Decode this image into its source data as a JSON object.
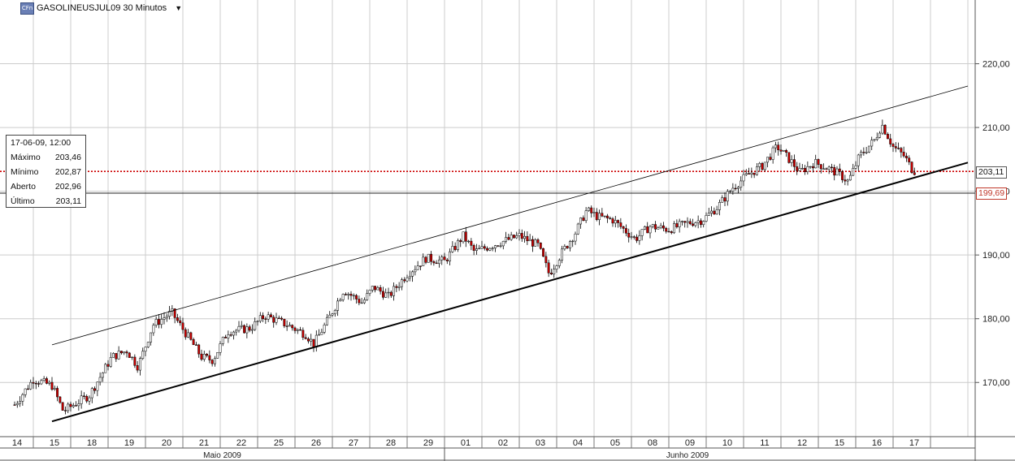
{
  "header": {
    "icon_text": "CFn",
    "title": "GASOLINEUSJUL09 30 Minutos",
    "dropdown_glyph": "▼"
  },
  "info": {
    "datetime": "17-06-09, 12:00",
    "max_label": "Máximo",
    "max_value": "203,46",
    "min_label": "Mínimo",
    "min_value": "202,87",
    "open_label": "Aberto",
    "open_value": "202,96",
    "last_label": "Último",
    "last_value": "203,11"
  },
  "tags": {
    "current": "203,11",
    "reference": "199,69"
  },
  "colors": {
    "up": "#000000",
    "down": "#cc0000",
    "current_line": "#cc0000",
    "grid": "#cccccc"
  },
  "chart_data": {
    "type": "candlestick",
    "interval": "30 Minutos",
    "ylim": [
      161.5,
      230
    ],
    "y_ticks": [
      170,
      180,
      190,
      200,
      210,
      220
    ],
    "y_tick_labels": [
      "170,00",
      "180,00",
      "190,00",
      "200,00",
      "210,00",
      "220,00"
    ],
    "days": [
      "14",
      "15",
      "18",
      "19",
      "20",
      "21",
      "22",
      "25",
      "26",
      "27",
      "28",
      "29",
      "01",
      "02",
      "03",
      "04",
      "05",
      "08",
      "09",
      "10",
      "11",
      "12",
      "15",
      "16",
      "17"
    ],
    "months": [
      {
        "label": "Maio 2009",
        "start_day": 0,
        "end_day": 11
      },
      {
        "label": "Junho 2009",
        "start_day": 12,
        "end_day": 24
      }
    ],
    "grid": true,
    "price_anchors": [
      {
        "day": 0.0,
        "price": 166.5
      },
      {
        "day": 0.5,
        "price": 170.5
      },
      {
        "day": 1.0,
        "price": 169.5
      },
      {
        "day": 1.3,
        "price": 165.5
      },
      {
        "day": 2.0,
        "price": 168.0
      },
      {
        "day": 2.6,
        "price": 174.0
      },
      {
        "day": 3.0,
        "price": 175.0
      },
      {
        "day": 3.3,
        "price": 172.5
      },
      {
        "day": 3.7,
        "price": 179.0
      },
      {
        "day": 4.2,
        "price": 181.0
      },
      {
        "day": 4.6,
        "price": 177.5
      },
      {
        "day": 5.0,
        "price": 174.0
      },
      {
        "day": 5.3,
        "price": 173.5
      },
      {
        "day": 5.7,
        "price": 178.0
      },
      {
        "day": 6.3,
        "price": 178.5
      },
      {
        "day": 6.7,
        "price": 180.5
      },
      {
        "day": 7.3,
        "price": 179.0
      },
      {
        "day": 7.8,
        "price": 177.5
      },
      {
        "day": 8.0,
        "price": 176.0
      },
      {
        "day": 8.4,
        "price": 180.0
      },
      {
        "day": 8.8,
        "price": 184.5
      },
      {
        "day": 9.3,
        "price": 182.5
      },
      {
        "day": 9.6,
        "price": 185.0
      },
      {
        "day": 10.0,
        "price": 183.5
      },
      {
        "day": 10.5,
        "price": 187.0
      },
      {
        "day": 11.0,
        "price": 189.5
      },
      {
        "day": 11.5,
        "price": 189.0
      },
      {
        "day": 12.0,
        "price": 193.0
      },
      {
        "day": 12.3,
        "price": 190.5
      },
      {
        "day": 13.0,
        "price": 192.0
      },
      {
        "day": 13.5,
        "price": 193.0
      },
      {
        "day": 14.0,
        "price": 191.5
      },
      {
        "day": 14.3,
        "price": 187.0
      },
      {
        "day": 14.6,
        "price": 190.0
      },
      {
        "day": 15.0,
        "price": 193.5
      },
      {
        "day": 15.3,
        "price": 197.0
      },
      {
        "day": 15.6,
        "price": 196.0
      },
      {
        "day": 16.0,
        "price": 195.5
      },
      {
        "day": 16.4,
        "price": 193.5
      },
      {
        "day": 16.6,
        "price": 192.5
      },
      {
        "day": 17.0,
        "price": 194.5
      },
      {
        "day": 17.5,
        "price": 194.0
      },
      {
        "day": 18.0,
        "price": 195.0
      },
      {
        "day": 18.4,
        "price": 195.5
      },
      {
        "day": 18.8,
        "price": 197.5
      },
      {
        "day": 19.2,
        "price": 200.5
      },
      {
        "day": 19.6,
        "price": 202.5
      },
      {
        "day": 20.0,
        "price": 204.0
      },
      {
        "day": 20.4,
        "price": 207.0
      },
      {
        "day": 20.8,
        "price": 204.5
      },
      {
        "day": 21.0,
        "price": 203.0
      },
      {
        "day": 21.4,
        "price": 204.5
      },
      {
        "day": 21.8,
        "price": 203.5
      },
      {
        "day": 22.1,
        "price": 202.5
      },
      {
        "day": 22.3,
        "price": 201.5
      },
      {
        "day": 22.6,
        "price": 205.5
      },
      {
        "day": 23.0,
        "price": 208.0
      },
      {
        "day": 23.2,
        "price": 210.5
      },
      {
        "day": 23.5,
        "price": 207.0
      },
      {
        "day": 23.8,
        "price": 205.5
      },
      {
        "day": 24.0,
        "price": 203.5
      },
      {
        "day": 24.1,
        "price": 203.1
      }
    ],
    "trendlines": [
      {
        "name": "support",
        "from": {
          "day": 1.0,
          "price": 163.9
        },
        "to": {
          "day": 25.5,
          "price": 204.5
        }
      },
      {
        "name": "resistance",
        "from": {
          "day": 1.0,
          "price": 175.9
        },
        "to": {
          "day": 25.5,
          "price": 216.5
        }
      }
    ],
    "horizontal_lines": [
      {
        "name": "current-price",
        "price": 203.11,
        "style": "dotted"
      },
      {
        "name": "reference-level",
        "price": 199.69,
        "style": "solid"
      }
    ]
  }
}
